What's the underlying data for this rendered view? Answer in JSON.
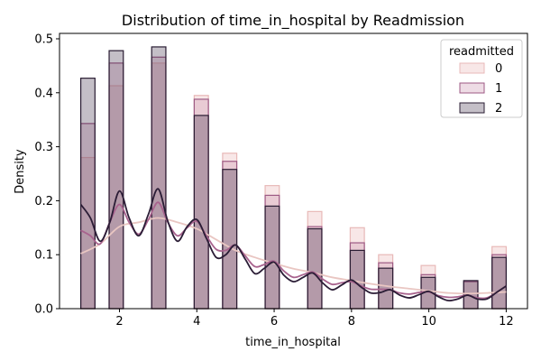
{
  "chart_data": {
    "type": "histogram",
    "title": "Distribution of time_in_hospital by Readmission",
    "xlabel": "time_in_hospital",
    "ylabel": "Density",
    "xlim": [
      0.45,
      12.55
    ],
    "ylim": [
      0,
      0.51
    ],
    "xticks": [
      2,
      4,
      6,
      8,
      10,
      12
    ],
    "yticks": [
      0.0,
      0.1,
      0.2,
      0.3,
      0.4,
      0.5
    ],
    "bin_edges": [
      [
        1.0,
        1.367
      ],
      [
        1.733,
        2.1
      ],
      [
        2.833,
        3.2
      ],
      [
        3.933,
        4.3
      ],
      [
        4.667,
        5.033
      ],
      [
        5.767,
        6.133
      ],
      [
        6.867,
        7.233
      ],
      [
        7.967,
        8.333
      ],
      [
        8.7,
        9.067
      ],
      [
        9.8,
        10.167
      ],
      [
        10.9,
        11.267
      ],
      [
        11.633,
        12.0
      ]
    ],
    "legend": {
      "title": "readmitted",
      "position": "upper right"
    },
    "series": [
      {
        "name": "0",
        "color": "#f3d3d3",
        "edge": "#e8b9b8",
        "bars": [
          0.28,
          0.413,
          0.455,
          0.395,
          0.288,
          0.228,
          0.18,
          0.15,
          0.1,
          0.08,
          0.05,
          0.115
        ],
        "kde_x": [
          1,
          1.5,
          2,
          2.5,
          3,
          3.5,
          4,
          4.5,
          5,
          5.5,
          6,
          6.5,
          7,
          7.5,
          8,
          8.5,
          9,
          9.5,
          10,
          10.5,
          11,
          11.5,
          12
        ],
        "kde_y": [
          0.102,
          0.12,
          0.152,
          0.16,
          0.168,
          0.16,
          0.148,
          0.128,
          0.108,
          0.095,
          0.084,
          0.074,
          0.067,
          0.058,
          0.052,
          0.046,
          0.041,
          0.037,
          0.033,
          0.029,
          0.028,
          0.029,
          0.031
        ]
      },
      {
        "name": "1",
        "color": "#c78aaa",
        "edge": "#9d5a84",
        "bars": [
          0.343,
          0.455,
          0.466,
          0.388,
          0.273,
          0.21,
          0.152,
          0.122,
          0.085,
          0.063,
          0.05,
          0.1
        ],
        "kde_x": [
          1,
          1.25,
          1.5,
          1.75,
          2,
          2.25,
          2.5,
          2.75,
          3,
          3.25,
          3.5,
          3.75,
          4,
          4.25,
          4.5,
          4.75,
          5,
          5.25,
          5.5,
          5.75,
          6,
          6.25,
          6.5,
          6.75,
          7,
          7.25,
          7.5,
          7.75,
          8,
          8.25,
          8.5,
          8.75,
          9,
          9.25,
          9.5,
          9.75,
          10,
          10.25,
          10.5,
          10.75,
          11,
          11.25,
          11.5,
          11.75,
          12
        ],
        "kde_y": [
          0.145,
          0.135,
          0.12,
          0.16,
          0.193,
          0.16,
          0.138,
          0.165,
          0.197,
          0.16,
          0.135,
          0.15,
          0.162,
          0.135,
          0.11,
          0.108,
          0.118,
          0.098,
          0.078,
          0.082,
          0.088,
          0.07,
          0.058,
          0.063,
          0.068,
          0.055,
          0.045,
          0.048,
          0.05,
          0.042,
          0.036,
          0.036,
          0.035,
          0.029,
          0.027,
          0.03,
          0.031,
          0.024,
          0.021,
          0.022,
          0.025,
          0.02,
          0.02,
          0.03,
          0.042
        ]
      },
      {
        "name": "2",
        "color": "#3b2a47",
        "edge": "#2a1d33",
        "bars": [
          0.427,
          0.478,
          0.485,
          0.358,
          0.258,
          0.19,
          0.148,
          0.108,
          0.075,
          0.058,
          0.052,
          0.095
        ],
        "kde_x": [
          1,
          1.25,
          1.5,
          1.75,
          2,
          2.25,
          2.5,
          2.75,
          3,
          3.25,
          3.5,
          3.75,
          4,
          4.25,
          4.5,
          4.75,
          5,
          5.25,
          5.5,
          5.75,
          6,
          6.25,
          6.5,
          6.75,
          7,
          7.25,
          7.5,
          7.75,
          8,
          8.25,
          8.5,
          8.75,
          9,
          9.25,
          9.5,
          9.75,
          10,
          10.25,
          10.5,
          10.75,
          11,
          11.25,
          11.5,
          11.75,
          12
        ],
        "kde_y": [
          0.193,
          0.168,
          0.125,
          0.16,
          0.218,
          0.168,
          0.135,
          0.175,
          0.222,
          0.162,
          0.125,
          0.152,
          0.165,
          0.13,
          0.095,
          0.1,
          0.118,
          0.092,
          0.065,
          0.075,
          0.086,
          0.062,
          0.05,
          0.058,
          0.066,
          0.048,
          0.035,
          0.044,
          0.053,
          0.04,
          0.029,
          0.03,
          0.035,
          0.025,
          0.02,
          0.026,
          0.032,
          0.022,
          0.015,
          0.018,
          0.025,
          0.018,
          0.018,
          0.03,
          0.042
        ]
      }
    ]
  }
}
